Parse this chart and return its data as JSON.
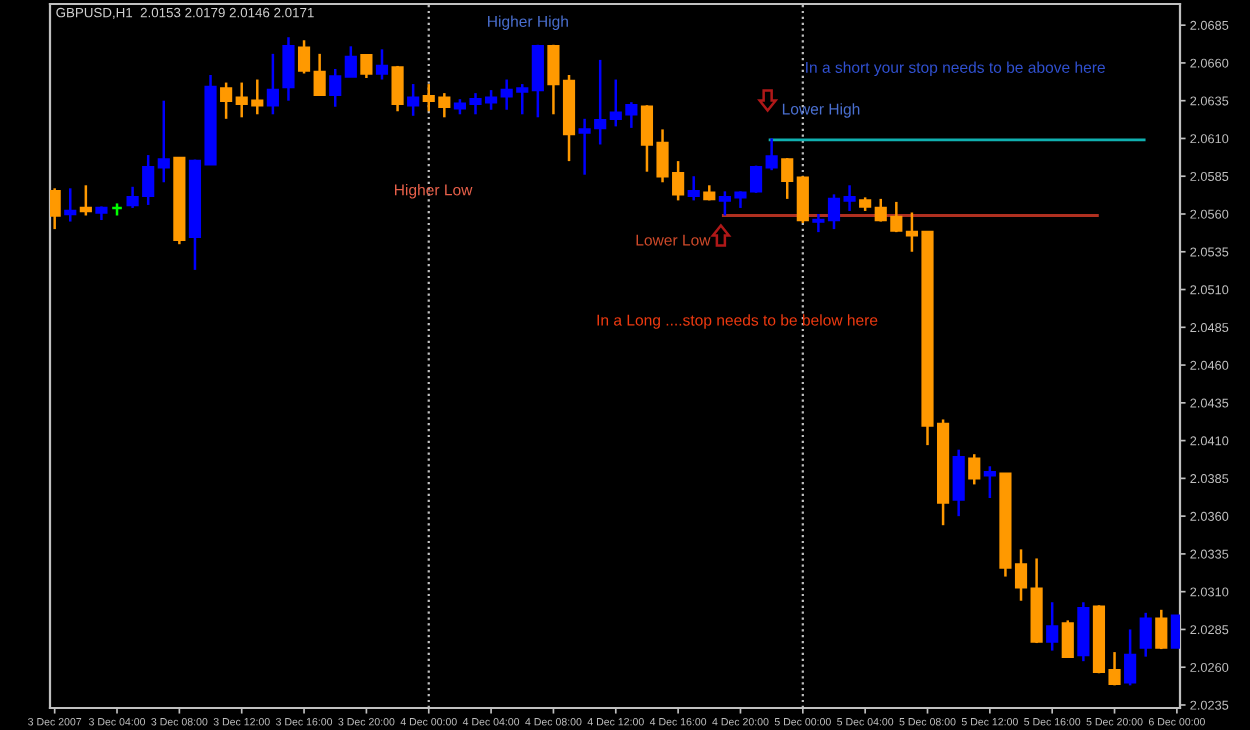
{
  "chart_data": {
    "type": "candlestick",
    "title": "GBPUSD,H1  2.0153 2.0179 2.0146 2.0171",
    "x": [
      "2007-12-03T00:00",
      "2007-12-03T01:00",
      "2007-12-03T02:00",
      "2007-12-03T03:00",
      "2007-12-03T04:00",
      "2007-12-03T05:00",
      "2007-12-03T06:00",
      "2007-12-03T07:00",
      "2007-12-03T08:00",
      "2007-12-03T09:00",
      "2007-12-03T10:00",
      "2007-12-03T11:00",
      "2007-12-03T12:00",
      "2007-12-03T13:00",
      "2007-12-03T14:00",
      "2007-12-03T15:00",
      "2007-12-03T16:00",
      "2007-12-03T17:00",
      "2007-12-03T18:00",
      "2007-12-03T19:00",
      "2007-12-03T20:00",
      "2007-12-03T21:00",
      "2007-12-03T22:00",
      "2007-12-03T23:00",
      "2007-12-04T00:00",
      "2007-12-04T01:00",
      "2007-12-04T02:00",
      "2007-12-04T03:00",
      "2007-12-04T04:00",
      "2007-12-04T05:00",
      "2007-12-04T06:00",
      "2007-12-04T07:00",
      "2007-12-04T08:00",
      "2007-12-04T09:00",
      "2007-12-04T10:00",
      "2007-12-04T11:00",
      "2007-12-04T12:00",
      "2007-12-04T13:00",
      "2007-12-04T14:00",
      "2007-12-04T15:00",
      "2007-12-04T16:00",
      "2007-12-04T17:00",
      "2007-12-04T18:00",
      "2007-12-04T19:00",
      "2007-12-04T20:00",
      "2007-12-04T21:00",
      "2007-12-04T22:00",
      "2007-12-04T23:00",
      "2007-12-05T00:00",
      "2007-12-05T01:00",
      "2007-12-05T02:00",
      "2007-12-05T03:00",
      "2007-12-05T04:00",
      "2007-12-05T05:00",
      "2007-12-05T06:00",
      "2007-12-05T07:00",
      "2007-12-05T08:00",
      "2007-12-05T09:00",
      "2007-12-05T10:00",
      "2007-12-05T11:00",
      "2007-12-05T12:00",
      "2007-12-05T13:00",
      "2007-12-05T14:00",
      "2007-12-05T15:00",
      "2007-12-05T16:00",
      "2007-12-05T17:00",
      "2007-12-05T18:00",
      "2007-12-05T19:00",
      "2007-12-05T20:00",
      "2007-12-05T21:00",
      "2007-12-05T22:00",
      "2007-12-05T23:00",
      "2007-12-06T00:00"
    ],
    "ohlc": [
      [
        2.0575,
        2.0577,
        2.055,
        2.0559
      ],
      [
        2.056,
        2.0577,
        2.0555,
        2.0562
      ],
      [
        2.0564,
        2.0579,
        2.0559,
        2.0562
      ],
      [
        2.0561,
        2.0565,
        2.0556,
        2.0564
      ],
      [
        2.0564,
        2.0567,
        2.0559,
        2.0564
      ],
      [
        2.0566,
        2.0578,
        2.0564,
        2.0571
      ],
      [
        2.0572,
        2.0599,
        2.0566,
        2.0591
      ],
      [
        2.0591,
        2.0635,
        2.0581,
        2.0596
      ],
      [
        2.0597,
        2.0597,
        2.054,
        2.0543
      ],
      [
        2.0545,
        2.0596,
        2.0523,
        2.0595
      ],
      [
        2.0593,
        2.0652,
        2.0593,
        2.0644
      ],
      [
        2.0643,
        2.0647,
        2.0623,
        2.0635
      ],
      [
        2.0637,
        2.0647,
        2.0624,
        2.0633
      ],
      [
        2.0635,
        2.0649,
        2.0626,
        2.0632
      ],
      [
        2.0632,
        2.0666,
        2.0626,
        2.0642
      ],
      [
        2.0644,
        2.0677,
        2.0635,
        2.0671
      ],
      [
        2.067,
        2.0675,
        2.0653,
        2.0655
      ],
      [
        2.0654,
        2.0666,
        2.0639,
        2.0639
      ],
      [
        2.0639,
        2.0656,
        2.0631,
        2.0651
      ],
      [
        2.0651,
        2.0671,
        2.0651,
        2.0664
      ],
      [
        2.0665,
        2.0665,
        2.065,
        2.0653
      ],
      [
        2.0653,
        2.0669,
        2.0649,
        2.0658
      ],
      [
        2.0657,
        2.0658,
        2.0628,
        2.0633
      ],
      [
        2.0632,
        2.0646,
        2.0625,
        2.0637
      ],
      [
        2.0638,
        2.0646,
        2.0628,
        2.0635
      ],
      [
        2.0637,
        2.064,
        2.0624,
        2.0631
      ],
      [
        2.063,
        2.0636,
        2.0626,
        2.0633
      ],
      [
        2.0633,
        2.064,
        2.0626,
        2.0636
      ],
      [
        2.0634,
        2.0642,
        2.0629,
        2.0637
      ],
      [
        2.0638,
        2.0649,
        2.0629,
        2.0642
      ],
      [
        2.0641,
        2.0646,
        2.0626,
        2.0643
      ],
      [
        2.0642,
        2.0672,
        2.0624,
        2.0671
      ],
      [
        2.0671,
        2.0672,
        2.0626,
        2.0646
      ],
      [
        2.0648,
        2.0652,
        2.0595,
        2.0613
      ],
      [
        2.0614,
        2.0623,
        2.0586,
        2.0616
      ],
      [
        2.0617,
        2.0662,
        2.0606,
        2.0622
      ],
      [
        2.0623,
        2.0649,
        2.0618,
        2.0627
      ],
      [
        2.0626,
        2.0634,
        2.0617,
        2.0632
      ],
      [
        2.0631,
        2.0632,
        2.0588,
        2.0606
      ],
      [
        2.0607,
        2.0616,
        2.0581,
        2.0585
      ],
      [
        2.0587,
        2.0595,
        2.0569,
        2.0573
      ],
      [
        2.0572,
        2.0585,
        2.0569,
        2.0575
      ],
      [
        2.0574,
        2.0579,
        2.0569,
        2.057
      ],
      [
        2.0569,
        2.0575,
        2.0559,
        2.0571
      ],
      [
        2.0571,
        2.0575,
        2.0564,
        2.0574
      ],
      [
        2.0575,
        2.0592,
        2.0574,
        2.0591
      ],
      [
        2.0591,
        2.061,
        2.0589,
        2.0598
      ],
      [
        2.0596,
        2.0597,
        2.057,
        2.0582
      ],
      [
        2.0584,
        2.0585,
        2.0554,
        2.0556
      ],
      [
        2.0555,
        2.056,
        2.0548,
        2.0556
      ],
      [
        2.0556,
        2.0573,
        2.055,
        2.057
      ],
      [
        2.0569,
        2.0579,
        2.0562,
        2.0571
      ],
      [
        2.0569,
        2.0571,
        2.0562,
        2.0565
      ],
      [
        2.0564,
        2.057,
        2.0555,
        2.0556
      ],
      [
        2.0558,
        2.0568,
        2.0548,
        2.0549
      ],
      [
        2.0548,
        2.0561,
        2.0535,
        2.0546
      ],
      [
        2.0548,
        2.0548,
        2.0407,
        2.042
      ],
      [
        2.0421,
        2.0424,
        2.0354,
        2.0369
      ],
      [
        2.0371,
        2.0404,
        2.036,
        2.0399
      ],
      [
        2.0398,
        2.0401,
        2.0381,
        2.0385
      ],
      [
        2.0387,
        2.0393,
        2.0372,
        2.0389
      ],
      [
        2.0388,
        2.0388,
        2.032,
        2.0326
      ],
      [
        2.0328,
        2.0338,
        2.0304,
        2.0313
      ],
      [
        2.0312,
        2.0332,
        2.0276,
        2.0277
      ],
      [
        2.0277,
        2.0303,
        2.0271,
        2.0287
      ],
      [
        2.0289,
        2.0291,
        2.0267,
        2.0267
      ],
      [
        2.0268,
        2.0303,
        2.0264,
        2.0299
      ],
      [
        2.03,
        2.0301,
        2.0256,
        2.0257
      ],
      [
        2.0258,
        2.027,
        2.0248,
        2.0249
      ],
      [
        2.025,
        2.0285,
        2.0248,
        2.0268
      ],
      [
        2.0273,
        2.0296,
        2.0267,
        2.0292
      ],
      [
        2.0292,
        2.0298,
        2.0272,
        2.0273
      ],
      [
        2.0273,
        2.0294,
        2.0273,
        2.0294
      ]
    ],
    "colors": [
      "#ff9900",
      "#0000ff",
      "#ff9900",
      "#0000ff",
      "#00ff00",
      "#0000ff",
      "#0000ff",
      "#0000ff",
      "#ff9900",
      "#0000ff",
      "#0000ff",
      "#ff9900",
      "#ff9900",
      "#ff9900",
      "#0000ff",
      "#0000ff",
      "#ff9900",
      "#ff9900",
      "#0000ff",
      "#0000ff",
      "#ff9900",
      "#0000ff",
      "#ff9900",
      "#0000ff",
      "#ff9900",
      "#ff9900",
      "#0000ff",
      "#0000ff",
      "#0000ff",
      "#0000ff",
      "#0000ff",
      "#0000ff",
      "#ff9900",
      "#ff9900",
      "#0000ff",
      "#0000ff",
      "#0000ff",
      "#0000ff",
      "#ff9900",
      "#ff9900",
      "#ff9900",
      "#0000ff",
      "#ff9900",
      "#0000ff",
      "#0000ff",
      "#0000ff",
      "#0000ff",
      "#ff9900",
      "#ff9900",
      "#0000ff",
      "#0000ff",
      "#0000ff",
      "#ff9900",
      "#ff9900",
      "#ff9900",
      "#ff9900",
      "#ff9900",
      "#ff9900",
      "#0000ff",
      "#ff9900",
      "#0000ff",
      "#ff9900",
      "#ff9900",
      "#ff9900",
      "#0000ff",
      "#ff9900",
      "#0000ff",
      "#ff9900",
      "#ff9900",
      "#0000ff",
      "#0000ff",
      "#ff9900",
      "#0000ff"
    ],
    "series": [
      {
        "type": "line",
        "color": "#10b0b0",
        "x": [
          "2007-12-04T21:54",
          "2007-12-05T21:54"
        ],
        "values": [
          2.0609,
          2.0609
        ]
      },
      {
        "type": "line",
        "color": "#b03020",
        "x": [
          "2007-12-04T18:54",
          "2007-12-05T18:54"
        ],
        "values": [
          2.0559,
          2.0559
        ]
      }
    ],
    "ref_lines": [
      {
        "axis": "x",
        "value": "2007-12-04T00:00",
        "color": "#c0c0c0",
        "line_style": "dotted"
      },
      {
        "axis": "x",
        "value": "2007-12-05T00:00",
        "color": "#c0c0c0",
        "line_style": "dotted"
      }
    ],
    "annotations": [
      {
        "text": "Higher High",
        "x": "2007-12-04T07:00",
        "y": 2.0672
      },
      "Higher Low",
      {
        "text": "Lower Low",
        "x": "2007-12-04T19:00",
        "y": 2.0559
      },
      {
        "text": "Lower High",
        "x": "2007-12-04T22:00",
        "y": 2.061
      },
      "In a short your stop needs to be above here",
      "In a Long ....stop needs to be below here"
    ],
    "xlim": [
      "2007-12-02T23:42",
      "2007-12-06T00:12"
    ],
    "ylim": [
      2.0233,
      2.0699
    ],
    "xticks": [
      {
        "value": "2007-12-03T00:00",
        "label": "3 Dec 2007"
      },
      {
        "value": "2007-12-03T04:00",
        "label": "3 Dec 04:00"
      },
      {
        "value": "2007-12-03T08:00",
        "label": "3 Dec 08:00"
      },
      {
        "value": "2007-12-03T12:00",
        "label": "3 Dec 12:00"
      },
      {
        "value": "2007-12-03T16:00",
        "label": "3 Dec 16:00"
      },
      {
        "value": "2007-12-03T20:00",
        "label": "3 Dec 20:00"
      },
      {
        "value": "2007-12-04T00:00",
        "label": "4 Dec 00:00"
      },
      {
        "value": "2007-12-04T04:00",
        "label": "4 Dec 04:00"
      },
      {
        "value": "2007-12-04T08:00",
        "label": "4 Dec 08:00"
      },
      {
        "value": "2007-12-04T12:00",
        "label": "4 Dec 12:00"
      },
      {
        "value": "2007-12-04T16:00",
        "label": "4 Dec 16:00"
      },
      {
        "value": "2007-12-04T20:00",
        "label": "4 Dec 20:00"
      },
      {
        "value": "2007-12-05T00:00",
        "label": "5 Dec 00:00"
      },
      {
        "value": "2007-12-05T04:00",
        "label": "5 Dec 04:00"
      },
      {
        "value": "2007-12-05T08:00",
        "label": "5 Dec 08:00"
      },
      {
        "value": "2007-12-05T12:00",
        "label": "5 Dec 12:00"
      },
      {
        "value": "2007-12-05T16:00",
        "label": "5 Dec 16:00"
      },
      {
        "value": "2007-12-05T20:00",
        "label": "5 Dec 20:00"
      },
      {
        "value": "2007-12-06T00:00",
        "label": "6 Dec 00:00"
      }
    ],
    "yticks": [
      2.0235,
      {
        "value": 2.026,
        "label": "2.0260"
      },
      2.0285,
      {
        "value": 2.031,
        "label": "2.0310"
      },
      2.0335,
      {
        "value": 2.036,
        "label": "2.0360"
      },
      2.0385,
      {
        "value": 2.041,
        "label": "2.0410"
      },
      2.0435,
      {
        "value": 2.046,
        "label": "2.0460"
      },
      2.0485,
      {
        "value": 2.051,
        "label": "2.0510"
      },
      2.0535,
      {
        "value": 2.056,
        "label": "2.0560"
      },
      2.0585,
      {
        "value": 2.061,
        "label": "2.0610"
      },
      2.0635,
      {
        "value": 2.066,
        "label": "2.0660"
      },
      2.0685
    ],
    "grid": false
  }
}
